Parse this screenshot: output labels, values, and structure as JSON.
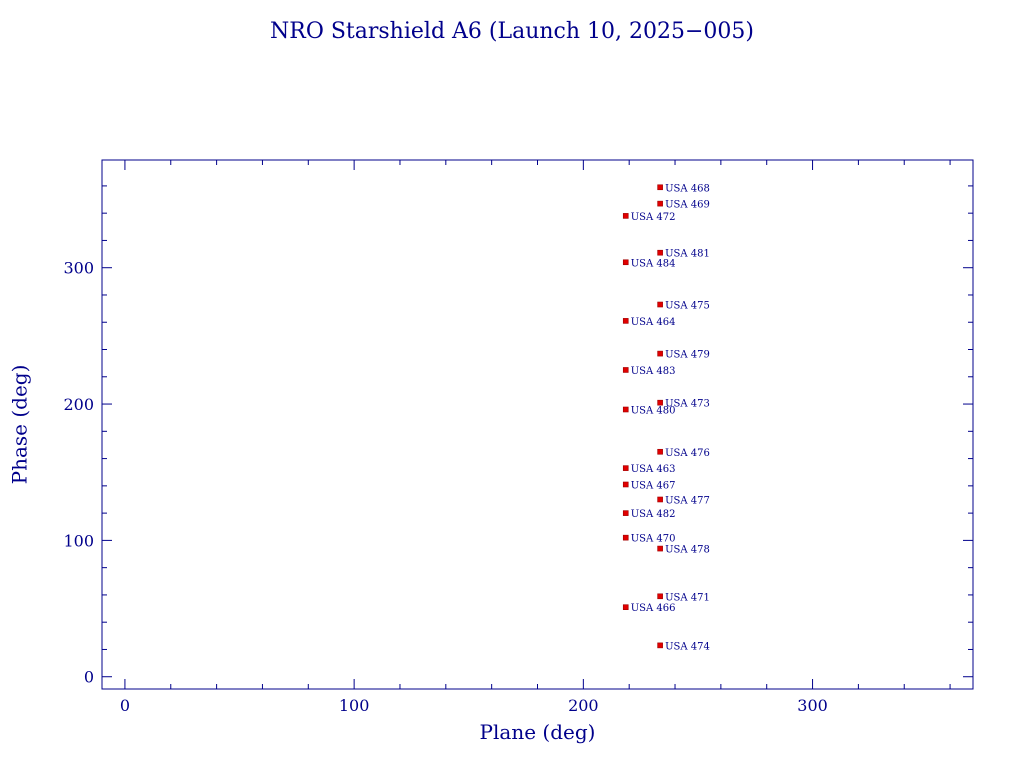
{
  "colors": {
    "axis": "#00008b",
    "text": "#00008b",
    "marker": "#e00000",
    "background": "#ffffff"
  },
  "chart_data": {
    "type": "scatter",
    "title": "NRO Starshield A6 (Launch 10, 2025−005)",
    "xlabel": "Plane (deg)",
    "ylabel": "Phase (deg)",
    "xlim": [
      -10,
      370
    ],
    "ylim": [
      -9,
      379
    ],
    "xticks": [
      0,
      100,
      200,
      300
    ],
    "yticks": [
      0,
      100,
      200,
      300
    ],
    "x_minor_step": 20,
    "y_minor_step": 20,
    "grid": false,
    "points": [
      {
        "label": "USA 468",
        "x": 233.5,
        "y": 359
      },
      {
        "label": "USA 469",
        "x": 233.5,
        "y": 347
      },
      {
        "label": "USA 472",
        "x": 218.5,
        "y": 338
      },
      {
        "label": "USA 481",
        "x": 233.5,
        "y": 311
      },
      {
        "label": "USA 484",
        "x": 218.5,
        "y": 304
      },
      {
        "label": "USA 475",
        "x": 233.5,
        "y": 273
      },
      {
        "label": "USA 464",
        "x": 218.5,
        "y": 261
      },
      {
        "label": "USA 479",
        "x": 233.5,
        "y": 237
      },
      {
        "label": "USA 483",
        "x": 218.5,
        "y": 225
      },
      {
        "label": "USA 473",
        "x": 233.5,
        "y": 201
      },
      {
        "label": "USA 480",
        "x": 218.5,
        "y": 196
      },
      {
        "label": "USA 476",
        "x": 233.5,
        "y": 165
      },
      {
        "label": "USA 463",
        "x": 218.5,
        "y": 153
      },
      {
        "label": "USA 467",
        "x": 218.5,
        "y": 141
      },
      {
        "label": "USA 477",
        "x": 233.5,
        "y": 130
      },
      {
        "label": "USA 482",
        "x": 218.5,
        "y": 120
      },
      {
        "label": "USA 470",
        "x": 218.5,
        "y": 102
      },
      {
        "label": "USA 478",
        "x": 233.5,
        "y": 94
      },
      {
        "label": "USA 471",
        "x": 233.5,
        "y": 59
      },
      {
        "label": "USA 466",
        "x": 218.5,
        "y": 51
      },
      {
        "label": "USA 474",
        "x": 233.5,
        "y": 23
      }
    ]
  }
}
